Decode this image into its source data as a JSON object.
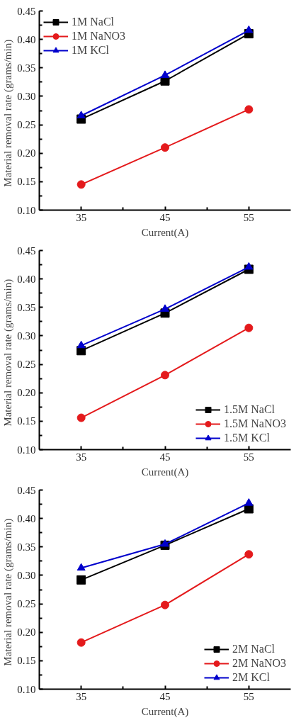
{
  "chart_data": [
    {
      "type": "line",
      "xlabel": "Current(A)",
      "ylabel": "Material  removal  rate (grams/min)",
      "x": [
        35,
        45,
        55
      ],
      "xlim": [
        30,
        60
      ],
      "xticks": [
        35,
        45,
        55
      ],
      "ylim": [
        0.1,
        0.45
      ],
      "yticks": [
        {
          "value": 0.1,
          "label": "0.10"
        },
        0.15,
        {
          "value": 0.2,
          "label": "0.20"
        },
        0.25,
        {
          "value": 0.3,
          "label": "0.30"
        },
        0.35,
        {
          "value": 0.4,
          "label": "0.40"
        },
        0.45
      ],
      "grid": false,
      "legend": "top left",
      "line_style": "solid",
      "series": [
        {
          "name": "1M NaCl",
          "color": "#000000",
          "marker": "square",
          "values": [
            0.26,
            0.327,
            0.41
          ]
        },
        {
          "name": "1M NaNO3",
          "color": "#e41a1c",
          "marker": "circle",
          "values": [
            0.145,
            0.21,
            0.277
          ]
        },
        {
          "name": "1M KCl",
          "color": "#0000cc",
          "marker": "triangle",
          "values": [
            0.266,
            0.337,
            0.416
          ]
        }
      ]
    },
    {
      "type": "line",
      "xlabel": "Current(A)",
      "ylabel": "Material  removal  rate (grams/min)",
      "x": [
        35,
        45,
        55
      ],
      "xlim": [
        30,
        60
      ],
      "xticks": [
        35,
        45,
        55
      ],
      "ylim": [
        0.1,
        0.45
      ],
      "yticks": [
        {
          "value": 0.1,
          "label": "0.10"
        },
        0.15,
        {
          "value": 0.2,
          "label": "0.20"
        },
        0.25,
        {
          "value": 0.3,
          "label": "0.30"
        },
        0.35,
        {
          "value": 0.4,
          "label": "0.40"
        },
        0.45
      ],
      "grid": false,
      "legend": "bottom right",
      "line_style": "solid",
      "series": [
        {
          "name": "1.5M NaCl",
          "color": "#000000",
          "marker": "square",
          "values": [
            0.274,
            0.34,
            0.417
          ]
        },
        {
          "name": "1.5M NaNO3",
          "color": "#e41a1c",
          "marker": "circle",
          "values": [
            0.156,
            0.231,
            0.314
          ]
        },
        {
          "name": "1.5M KCl",
          "color": "#0000cc",
          "marker": "triangle",
          "values": [
            0.283,
            0.347,
            0.421
          ]
        }
      ]
    },
    {
      "type": "line",
      "xlabel": "Current(A)",
      "ylabel": "Material  removal  rate (grams/min)",
      "x": [
        35,
        45,
        55
      ],
      "xlim": [
        30,
        60
      ],
      "xticks": [
        35,
        45,
        55
      ],
      "ylim": [
        0.1,
        0.45
      ],
      "yticks": [
        {
          "value": 0.1,
          "label": "0.10"
        },
        0.15,
        {
          "value": 0.2,
          "label": "0.20"
        },
        0.25,
        {
          "value": 0.3,
          "label": "0.30"
        },
        0.35,
        {
          "value": 0.4,
          "label": "0.40"
        },
        0.45
      ],
      "grid": false,
      "legend": "bottom right",
      "line_style": "solid",
      "series": [
        {
          "name": "2M NaCl",
          "color": "#000000",
          "marker": "square",
          "values": [
            0.292,
            0.353,
            0.417
          ]
        },
        {
          "name": "2M NaNO3",
          "color": "#e41a1c",
          "marker": "circle",
          "values": [
            0.182,
            0.248,
            0.337
          ]
        },
        {
          "name": "2M KCl",
          "color": "#0000cc",
          "marker": "triangle",
          "values": [
            0.313,
            0.355,
            0.427
          ]
        }
      ]
    }
  ]
}
